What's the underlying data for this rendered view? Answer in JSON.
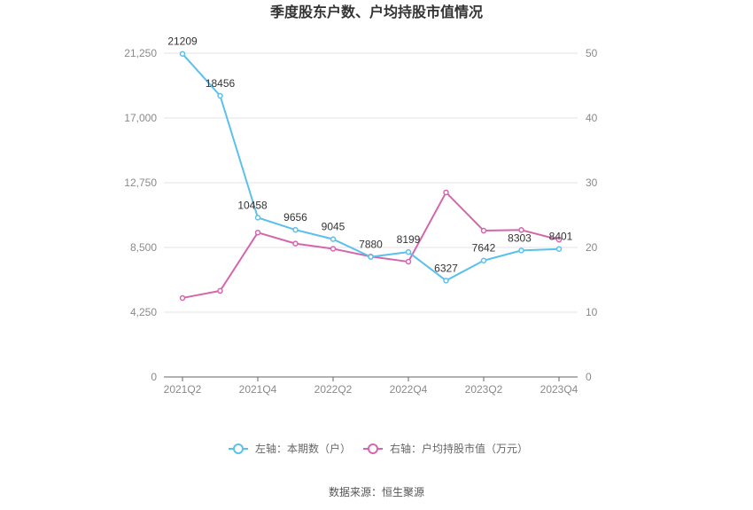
{
  "chart_data": {
    "type": "line",
    "title": "季度股东户数、户均持股市值情况",
    "categories": [
      "2021Q2",
      "2021Q3",
      "2021Q4",
      "2022Q1",
      "2022Q2",
      "2022Q3",
      "2022Q4",
      "2023Q1",
      "2023Q2",
      "2023Q3",
      "2023Q4"
    ],
    "x_tick_labels": [
      "2021Q2",
      "2021Q4",
      "2022Q2",
      "2022Q4",
      "2023Q2",
      "2023Q4"
    ],
    "left_axis": {
      "ticks": [
        "0",
        "4,250",
        "8,500",
        "12,750",
        "17,000",
        "21,250"
      ],
      "range": [
        0,
        21250
      ]
    },
    "right_axis": {
      "ticks": [
        "0",
        "10",
        "20",
        "30",
        "40",
        "50"
      ],
      "range": [
        0,
        50
      ]
    },
    "series": [
      {
        "name": "左轴：本期数（户）",
        "axis": "left",
        "color": "#5bc0eb",
        "values": [
          21209,
          18456,
          10458,
          9656,
          9045,
          7880,
          8199,
          6327,
          7642,
          8303,
          8401
        ],
        "labels": [
          "21209",
          "18456",
          "10458",
          "9656",
          "9045",
          "7880",
          "8199",
          "6327",
          "7642",
          "8303",
          "8401"
        ]
      },
      {
        "name": "右轴：户均持股市值（万元）",
        "axis": "right",
        "color": "#d466ac",
        "values": [
          12.2,
          13.3,
          22.3,
          20.6,
          19.8,
          18.6,
          17.8,
          28.5,
          22.6,
          22.7,
          21.2
        ]
      }
    ],
    "grid": true,
    "legend_position": "bottom-center"
  },
  "source": "数据来源：恒生聚源"
}
